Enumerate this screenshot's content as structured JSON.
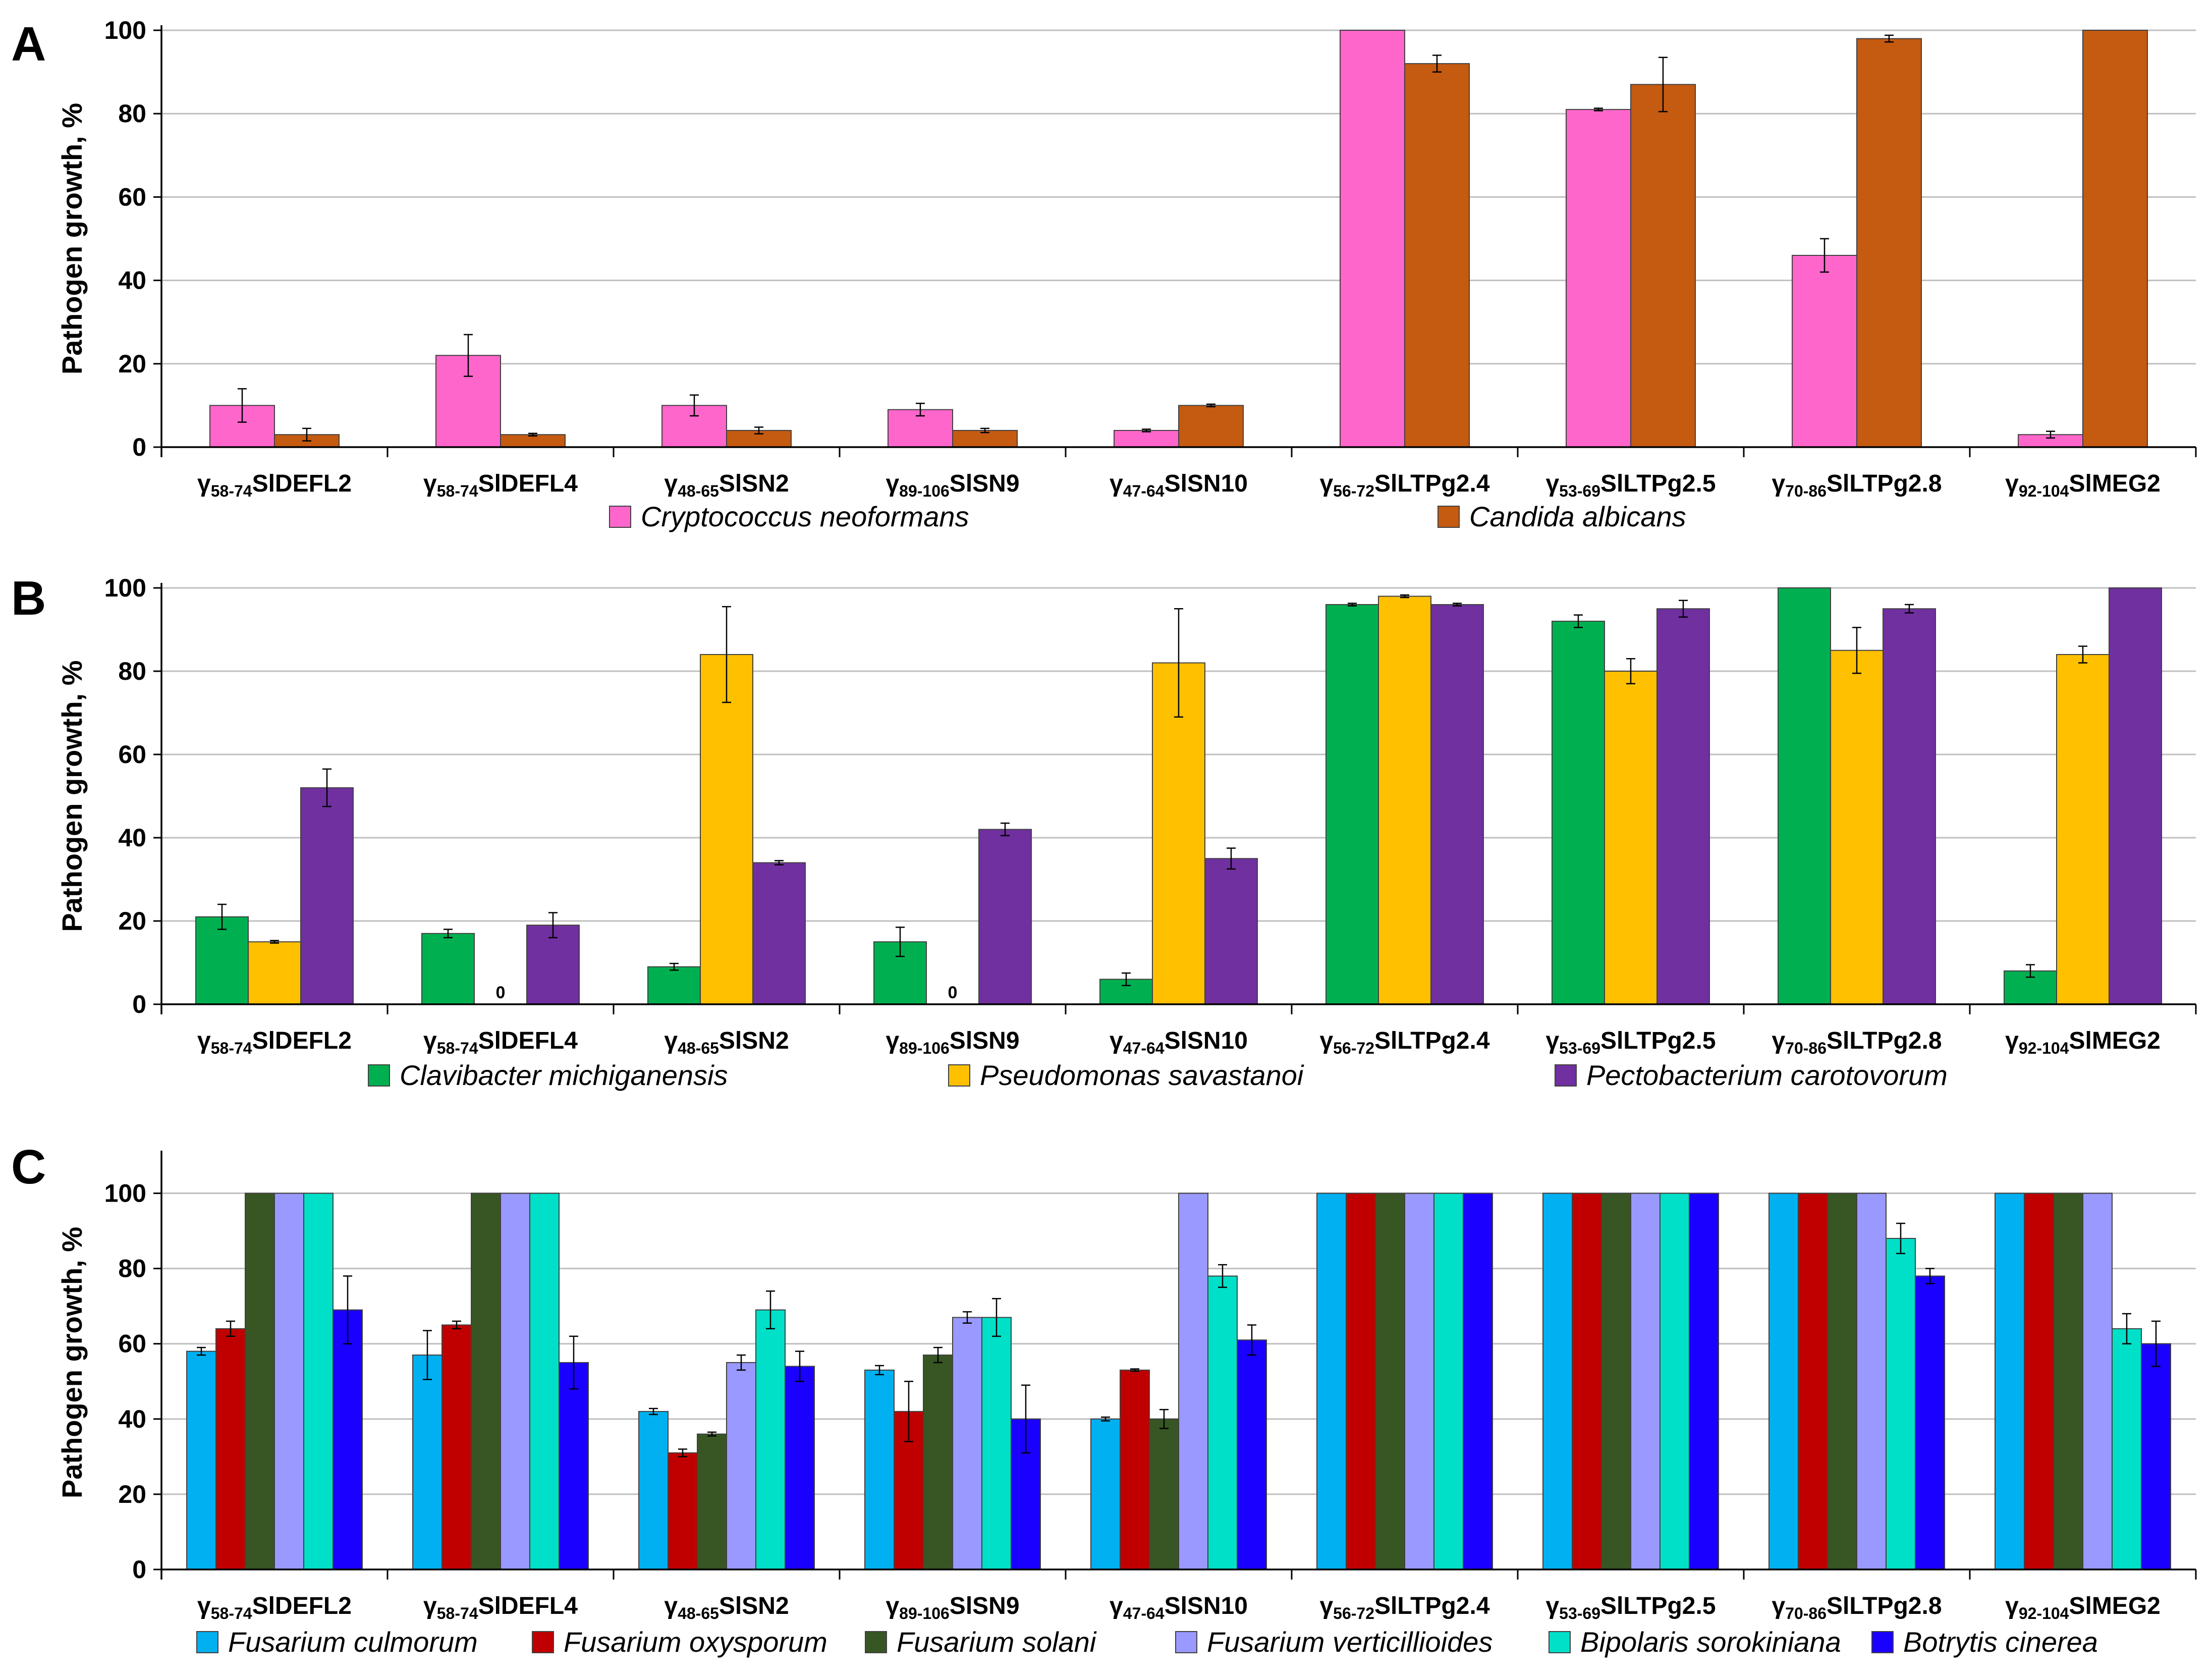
{
  "figure": {
    "categories": [
      {
        "greek": "γ",
        "sub": "58-74",
        "name": "SlDEFL2"
      },
      {
        "greek": "γ",
        "sub": "58-74",
        "name": "SlDEFL4"
      },
      {
        "greek": "γ",
        "sub": "48-65",
        "name": "SlSN2"
      },
      {
        "greek": "γ",
        "sub": "89-106",
        "name": "SlSN9"
      },
      {
        "greek": "γ",
        "sub": "47-64",
        "name": "SlSN10"
      },
      {
        "greek": "γ",
        "sub": "56-72",
        "name": "SlLTPg2.4"
      },
      {
        "greek": "γ",
        "sub": "53-69",
        "name": "SlLTPg2.5"
      },
      {
        "greek": "γ",
        "sub": "70-86",
        "name": "SlLTPg2.8"
      },
      {
        "greek": "γ",
        "sub": "92-104",
        "name": "SlMEG2"
      }
    ]
  },
  "chart_data": [
    {
      "panel": "A",
      "type": "bar",
      "ylabel": "Pathogen growth, %",
      "ylim": [
        0,
        100
      ],
      "yticks": [
        0,
        20,
        40,
        60,
        80,
        100
      ],
      "grid": true,
      "legend_position": "bottom",
      "categories": [
        "γ58-74SlDEFL2",
        "γ58-74SlDEFL4",
        "γ48-65SlSN2",
        "γ89-106SlSN9",
        "γ47-64SlSN10",
        "γ56-72SlLTPg2.4",
        "γ53-69SlLTPg2.5",
        "γ70-86SlLTPg2.8",
        "γ92-104SlMEG2"
      ],
      "series": [
        {
          "name": "Cryptococcus neoformans",
          "color": "#ff66cc",
          "values": [
            10,
            22,
            10,
            9,
            4,
            100,
            81,
            46,
            3
          ],
          "errors": [
            4,
            5,
            2.5,
            1.5,
            0.3,
            0,
            0.3,
            4,
            0.8
          ]
        },
        {
          "name": "Candida albicans",
          "color": "#c55a11",
          "values": [
            3,
            3,
            4,
            4,
            10,
            92,
            87,
            98,
            100
          ],
          "errors": [
            1.5,
            0.3,
            0.8,
            0.5,
            0.3,
            2,
            6.5,
            0.8,
            0
          ]
        }
      ]
    },
    {
      "panel": "B",
      "type": "bar",
      "ylabel": "Pathogen growth, %",
      "ylim": [
        0,
        100
      ],
      "yticks": [
        0,
        20,
        40,
        60,
        80,
        100
      ],
      "grid": true,
      "legend_position": "bottom",
      "categories": [
        "γ58-74SlDEFL2",
        "γ58-74SlDEFL4",
        "γ48-65SlSN2",
        "γ89-106SlSN9",
        "γ47-64SlSN10",
        "γ56-72SlLTPg2.4",
        "γ53-69SlLTPg2.5",
        "γ70-86SlLTPg2.8",
        "γ92-104SlMEG2"
      ],
      "zero_label": "0",
      "series": [
        {
          "name": "Clavibacter michiganensis",
          "color": "#00b050",
          "values": [
            21,
            17,
            9,
            15,
            6,
            96,
            92,
            100,
            8
          ],
          "errors": [
            3,
            1,
            0.8,
            3.5,
            1.5,
            0.3,
            1.5,
            0,
            1.5
          ]
        },
        {
          "name": "Pseudomonas savastanoi",
          "color": "#ffc000",
          "values": [
            15,
            0,
            84,
            0,
            82,
            98,
            80,
            85,
            84
          ],
          "errors": [
            0.3,
            0,
            11.5,
            0,
            13,
            0.3,
            3,
            5.5,
            2
          ]
        },
        {
          "name": "Pectobacterium carotovorum",
          "color": "#7030a0",
          "values": [
            52,
            19,
            34,
            42,
            35,
            96,
            95,
            95,
            100
          ],
          "errors": [
            4.5,
            3,
            0.5,
            1.5,
            2.5,
            0.3,
            2,
            1,
            0
          ]
        }
      ]
    },
    {
      "panel": "C",
      "type": "bar",
      "ylabel": "Pathogen growth, %",
      "ylim": [
        0,
        110
      ],
      "yticks": [
        0,
        20,
        40,
        60,
        80,
        100
      ],
      "grid": true,
      "legend_position": "bottom",
      "categories": [
        "γ58-74SlDEFL2",
        "γ58-74SlDEFL4",
        "γ48-65SlSN2",
        "γ89-106SlSN9",
        "γ47-64SlSN10",
        "γ56-72SlLTPg2.4",
        "γ53-69SlLTPg2.5",
        "γ70-86SlLTPg2.8",
        "γ92-104SlMEG2"
      ],
      "series": [
        {
          "name": "Fusarium culmorum",
          "color": "#00b0f0",
          "values": [
            58,
            57,
            42,
            53,
            40,
            100,
            100,
            100,
            100
          ],
          "errors": [
            1,
            6.5,
            0.8,
            1.2,
            0.5,
            0,
            0,
            0,
            0
          ]
        },
        {
          "name": "Fusarium oxysporum",
          "color": "#c00000",
          "values": [
            64,
            65,
            31,
            42,
            53,
            100,
            100,
            100,
            100
          ],
          "errors": [
            2,
            1,
            1,
            8,
            0.3,
            0,
            0,
            0,
            0
          ]
        },
        {
          "name": "Fusarium solani",
          "color": "#375623",
          "values": [
            100,
            100,
            36,
            57,
            40,
            100,
            100,
            100,
            100
          ],
          "errors": [
            0,
            0,
            0.5,
            2,
            2.5,
            0,
            0,
            0,
            0
          ]
        },
        {
          "name": "Fusarium verticillioides",
          "color": "#9999ff",
          "values": [
            100,
            100,
            55,
            67,
            100,
            100,
            100,
            100,
            100
          ],
          "errors": [
            0,
            0,
            2,
            1.5,
            0,
            0,
            0,
            0,
            0
          ]
        },
        {
          "name": "Bipolaris sorokiniana",
          "color": "#00e0c8",
          "values": [
            100,
            100,
            69,
            67,
            78,
            100,
            100,
            88,
            64
          ],
          "errors": [
            0,
            0,
            5,
            5,
            3,
            0,
            0,
            4,
            4
          ]
        },
        {
          "name": "Botrytis cinerea",
          "color": "#1a00ff",
          "values": [
            69,
            55,
            54,
            40,
            61,
            100,
            100,
            78,
            60
          ],
          "errors": [
            9,
            7,
            4,
            9,
            4,
            0,
            0,
            2,
            6
          ]
        }
      ]
    }
  ]
}
